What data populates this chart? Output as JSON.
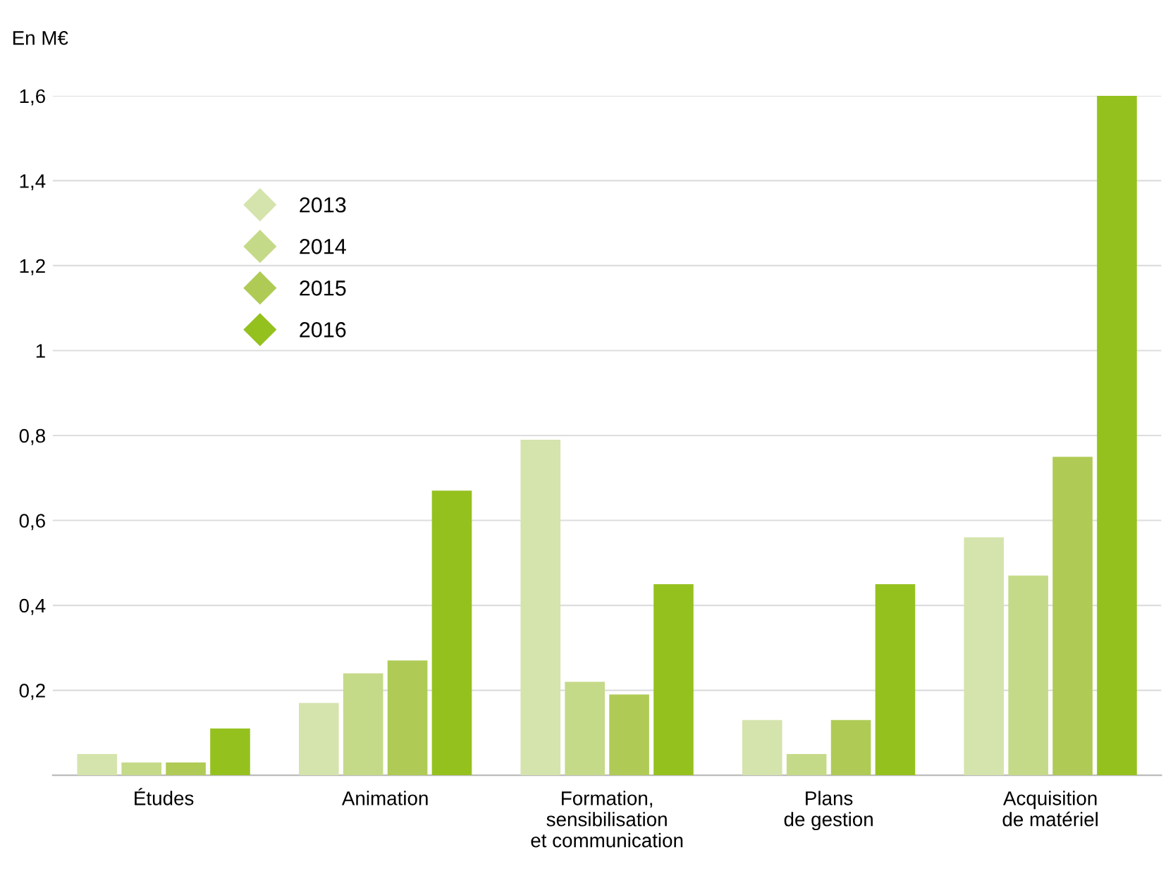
{
  "chart_data": {
    "type": "bar",
    "ylabel": "En M€",
    "categories": [
      "Études",
      "Animation",
      "Formation,\nsensibilisation\net communication",
      "Plans\nde gestion",
      "Acquisition\nde matériel"
    ],
    "series": [
      {
        "name": "2013",
        "color": "#d5e3ad",
        "values": [
          0.05,
          0.17,
          0.79,
          0.13,
          0.56
        ]
      },
      {
        "name": "2014",
        "color": "#c5da88",
        "values": [
          0.03,
          0.24,
          0.22,
          0.05,
          0.47
        ]
      },
      {
        "name": "2015",
        "color": "#afcb55",
        "values": [
          0.03,
          0.27,
          0.19,
          0.13,
          0.75
        ]
      },
      {
        "name": "2016",
        "color": "#95c11f",
        "values": [
          0.11,
          0.67,
          0.45,
          0.45,
          1.6
        ]
      }
    ],
    "ylim": [
      0,
      1.6
    ],
    "yticks": [
      {
        "value": 0.2,
        "label": "0,2"
      },
      {
        "value": 0.4,
        "label": "0,4"
      },
      {
        "value": 0.6,
        "label": "0,6"
      },
      {
        "value": 0.8,
        "label": "0,8"
      },
      {
        "value": 1,
        "label": "1"
      },
      {
        "value": 1.2,
        "label": "1,2"
      },
      {
        "value": 1.4,
        "label": "1,4"
      },
      {
        "value": 1.6,
        "label": "1,6"
      }
    ],
    "grid": "y",
    "legend": "top left"
  }
}
